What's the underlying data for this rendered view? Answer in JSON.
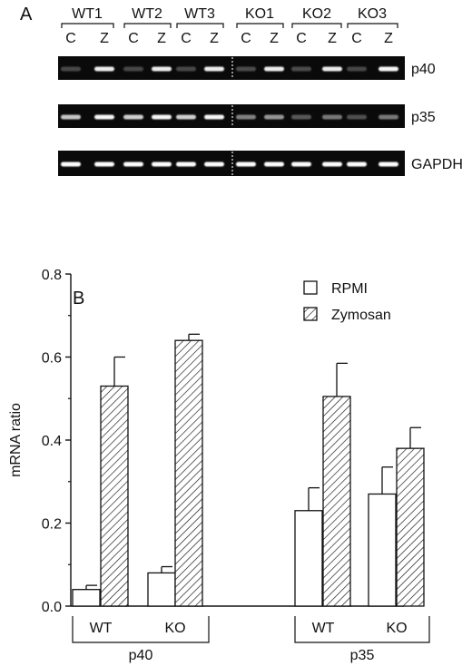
{
  "panel_a": {
    "label": "A",
    "samples": [
      {
        "name": "WT1",
        "lanes": [
          "C",
          "Z"
        ]
      },
      {
        "name": "WT2",
        "lanes": [
          "C",
          "Z"
        ]
      },
      {
        "name": "WT3",
        "lanes": [
          "C",
          "Z"
        ]
      },
      {
        "name": "KO1",
        "lanes": [
          "C",
          "Z"
        ]
      },
      {
        "name": "KO2",
        "lanes": [
          "C",
          "Z"
        ]
      },
      {
        "name": "KO3",
        "lanes": [
          "C",
          "Z"
        ]
      }
    ],
    "gels": [
      {
        "name": "p40",
        "band_intensity": [
          0.05,
          0.9,
          0.05,
          0.9,
          0.05,
          0.9,
          0.08,
          0.9,
          0.08,
          0.9,
          0.05,
          0.95
        ]
      },
      {
        "name": "p35",
        "band_intensity": [
          0.7,
          0.95,
          0.75,
          0.95,
          0.75,
          0.95,
          0.35,
          0.45,
          0.15,
          0.3,
          0.1,
          0.3
        ]
      },
      {
        "name": "GAPDH",
        "band_intensity": [
          1,
          1,
          1,
          1,
          1,
          1,
          1,
          1,
          1,
          1,
          1,
          1
        ]
      }
    ]
  },
  "chart_data": {
    "type": "bar",
    "panel_label": "B",
    "ylabel": "mRNA ratio",
    "ylim": [
      0,
      0.8
    ],
    "yticks": [
      "0.0",
      "0.2",
      "0.4",
      "0.6",
      "0.8"
    ],
    "legend_position": "top-right",
    "groups": [
      {
        "label": "p40",
        "categories": [
          "WT",
          "KO"
        ]
      },
      {
        "label": "p35",
        "categories": [
          "WT",
          "KO"
        ]
      }
    ],
    "series": [
      {
        "name": "RPMI",
        "pattern": "open",
        "values": [
          0.04,
          0.08,
          0.23,
          0.27
        ],
        "errors": [
          0.01,
          0.015,
          0.055,
          0.065
        ]
      },
      {
        "name": "Zymosan",
        "pattern": "hatched",
        "values": [
          0.53,
          0.64,
          0.505,
          0.38
        ],
        "errors": [
          0.07,
          0.015,
          0.08,
          0.05
        ]
      }
    ]
  }
}
